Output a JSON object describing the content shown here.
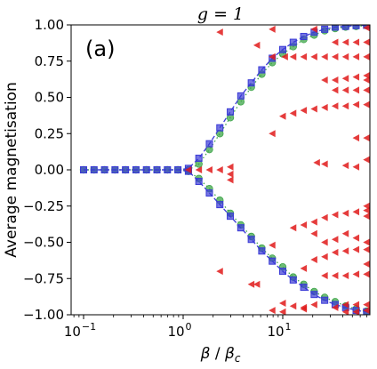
{
  "chart_data": {
    "type": "scatter",
    "title": "g = 1",
    "panel_label": "(a)",
    "xlabel": "β / β_c",
    "ylabel": "Average magnetisation",
    "xscale": "log",
    "xlim": [
      0.075,
      75
    ],
    "ylim": [
      -1.0,
      1.0
    ],
    "x_ticks": [
      {
        "value": 0.1,
        "base": "10",
        "exp": "−1"
      },
      {
        "value": 1,
        "base": "10",
        "exp": "0"
      },
      {
        "value": 10,
        "base": "10",
        "exp": "1"
      }
    ],
    "y_ticks": [
      {
        "value": 1.0,
        "label": "1.00"
      },
      {
        "value": 0.75,
        "label": "0.75"
      },
      {
        "value": 0.5,
        "label": "0.50"
      },
      {
        "value": 0.25,
        "label": "0.25"
      },
      {
        "value": 0.0,
        "label": "0.00"
      },
      {
        "value": -0.25,
        "label": "−0.25"
      },
      {
        "value": -0.5,
        "label": "−0.50"
      },
      {
        "value": -0.75,
        "label": "−0.75"
      },
      {
        "value": -1.0,
        "label": "−1.00"
      }
    ],
    "grid": false,
    "legend": "none",
    "series": [
      {
        "marker": "square",
        "color": "#3a3ad6",
        "line": "dashed",
        "upper": [
          [
            0.1,
            0.0
          ],
          [
            0.1274,
            0.0
          ],
          [
            0.1624,
            0.0
          ],
          [
            0.2069,
            0.0
          ],
          [
            0.2637,
            0.0
          ],
          [
            0.336,
            0.0
          ],
          [
            0.4281,
            0.0
          ],
          [
            0.5456,
            0.0
          ],
          [
            0.6952,
            0.0
          ],
          [
            0.8859,
            0.0
          ],
          [
            1.129,
            0.01
          ],
          [
            1.438,
            0.08
          ],
          [
            1.833,
            0.18
          ],
          [
            2.336,
            0.29
          ],
          [
            2.976,
            0.4
          ],
          [
            3.793,
            0.51
          ],
          [
            4.833,
            0.6
          ],
          [
            6.158,
            0.69
          ],
          [
            7.848,
            0.77
          ],
          [
            10.0,
            0.83
          ],
          [
            12.74,
            0.88
          ],
          [
            16.24,
            0.92
          ],
          [
            20.69,
            0.95
          ],
          [
            26.37,
            0.97
          ],
          [
            33.6,
            0.985
          ],
          [
            42.81,
            0.99
          ],
          [
            54.56,
            0.995
          ],
          [
            69.52,
            0.997
          ]
        ],
        "lower": [
          [
            1.129,
            -0.01
          ],
          [
            1.438,
            -0.08
          ],
          [
            1.833,
            -0.16
          ],
          [
            2.336,
            -0.24
          ],
          [
            2.976,
            -0.32
          ],
          [
            3.793,
            -0.4
          ],
          [
            4.833,
            -0.48
          ],
          [
            6.158,
            -0.56
          ],
          [
            7.848,
            -0.63
          ],
          [
            10.0,
            -0.7
          ],
          [
            12.74,
            -0.76
          ],
          [
            16.24,
            -0.81
          ],
          [
            20.69,
            -0.86
          ],
          [
            26.37,
            -0.9
          ],
          [
            33.6,
            -0.93
          ],
          [
            42.81,
            -0.95
          ],
          [
            54.56,
            -0.97
          ],
          [
            69.52,
            -0.98
          ]
        ]
      },
      {
        "marker": "circle",
        "color": "#3fa64a",
        "line": "dotted",
        "upper": [
          [
            0.1,
            0.0
          ],
          [
            0.1274,
            0.0
          ],
          [
            0.1624,
            0.0
          ],
          [
            0.2069,
            0.0
          ],
          [
            0.2637,
            0.0
          ],
          [
            0.336,
            0.0
          ],
          [
            0.4281,
            0.0
          ],
          [
            0.5456,
            0.0
          ],
          [
            0.6952,
            0.0
          ],
          [
            0.8859,
            0.0
          ],
          [
            1.129,
            0.0
          ],
          [
            1.438,
            0.04
          ],
          [
            1.833,
            0.14
          ],
          [
            2.336,
            0.25
          ],
          [
            2.976,
            0.36
          ],
          [
            3.793,
            0.47
          ],
          [
            4.833,
            0.57
          ],
          [
            6.158,
            0.66
          ],
          [
            7.848,
            0.74
          ],
          [
            10.0,
            0.8
          ],
          [
            12.74,
            0.85
          ],
          [
            16.24,
            0.9
          ],
          [
            20.69,
            0.93
          ],
          [
            26.37,
            0.96
          ],
          [
            33.6,
            0.975
          ],
          [
            42.81,
            0.985
          ],
          [
            54.56,
            0.99
          ],
          [
            69.52,
            0.995
          ]
        ],
        "lower": [
          [
            1.129,
            -0.01
          ],
          [
            1.438,
            -0.06
          ],
          [
            1.833,
            -0.13
          ],
          [
            2.336,
            -0.21
          ],
          [
            2.976,
            -0.3
          ],
          [
            3.793,
            -0.38
          ],
          [
            4.833,
            -0.46
          ],
          [
            6.158,
            -0.54
          ],
          [
            7.848,
            -0.61
          ],
          [
            10.0,
            -0.67
          ],
          [
            12.74,
            -0.74
          ],
          [
            16.24,
            -0.79
          ],
          [
            20.69,
            -0.84
          ],
          [
            26.37,
            -0.88
          ],
          [
            33.6,
            -0.91
          ],
          [
            42.81,
            -0.94
          ],
          [
            54.56,
            -0.96
          ],
          [
            69.52,
            -0.975
          ]
        ]
      },
      {
        "marker": "triangle-left",
        "color": "#e01a1a",
        "line": "none",
        "points": [
          [
            1.129,
            0.0
          ],
          [
            1.438,
            0.0
          ],
          [
            1.833,
            0.0
          ],
          [
            2.336,
            0.0
          ],
          [
            2.976,
            -0.03
          ],
          [
            2.976,
            -0.07
          ],
          [
            2.976,
            0.02
          ],
          [
            2.336,
            -0.7
          ],
          [
            2.336,
            0.95
          ],
          [
            4.833,
            -0.79
          ],
          [
            5.5,
            0.86
          ],
          [
            5.5,
            -0.79
          ],
          [
            7.848,
            0.25
          ],
          [
            7.848,
            -0.52
          ],
          [
            7.848,
            0.78
          ],
          [
            7.848,
            0.97
          ],
          [
            7.848,
            -0.97
          ],
          [
            10.0,
            0.37
          ],
          [
            10.0,
            -0.92
          ],
          [
            10.0,
            -0.98
          ],
          [
            10.5,
            0.78
          ],
          [
            12.74,
            0.39
          ],
          [
            12.74,
            0.78
          ],
          [
            12.74,
            -0.4
          ],
          [
            12.74,
            -0.94
          ],
          [
            16.24,
            0.41
          ],
          [
            16.24,
            0.78
          ],
          [
            16.24,
            -0.38
          ],
          [
            16.24,
            -0.68
          ],
          [
            16.24,
            -0.95
          ],
          [
            20.69,
            0.42
          ],
          [
            20.69,
            0.78
          ],
          [
            20.69,
            -0.36
          ],
          [
            20.69,
            -0.44
          ],
          [
            20.69,
            -0.62
          ],
          [
            20.69,
            -0.93
          ],
          [
            20.69,
            0.97
          ],
          [
            26.37,
            0.43
          ],
          [
            26.37,
            0.78
          ],
          [
            26.37,
            0.04
          ],
          [
            26.37,
            -0.33
          ],
          [
            26.37,
            -0.5
          ],
          [
            26.37,
            -0.6
          ],
          [
            26.37,
            -0.73
          ],
          [
            26.37,
            0.62
          ],
          [
            33.6,
            0.44
          ],
          [
            33.6,
            0.78
          ],
          [
            33.6,
            0.88
          ],
          [
            33.6,
            0.62
          ],
          [
            33.6,
            0.55
          ],
          [
            33.6,
            -0.31
          ],
          [
            33.6,
            -0.48
          ],
          [
            33.6,
            -0.57
          ],
          [
            33.6,
            -0.73
          ],
          [
            33.6,
            -0.95
          ],
          [
            42.81,
            0.44
          ],
          [
            42.81,
            0.78
          ],
          [
            42.81,
            0.88
          ],
          [
            42.81,
            0.63
          ],
          [
            42.81,
            0.55
          ],
          [
            42.81,
            0.03
          ],
          [
            42.81,
            -0.3
          ],
          [
            42.81,
            -0.44
          ],
          [
            42.81,
            -0.56
          ],
          [
            42.81,
            -0.73
          ],
          [
            42.81,
            -0.93
          ],
          [
            42.81,
            -0.98
          ],
          [
            54.56,
            0.45
          ],
          [
            54.56,
            0.78
          ],
          [
            54.56,
            0.88
          ],
          [
            54.56,
            0.64
          ],
          [
            54.56,
            0.55
          ],
          [
            54.56,
            0.22
          ],
          [
            54.56,
            0.02
          ],
          [
            54.56,
            -0.29
          ],
          [
            54.56,
            -0.47
          ],
          [
            54.56,
            -0.55
          ],
          [
            54.56,
            -0.72
          ],
          [
            54.56,
            -0.93
          ],
          [
            54.56,
            -0.98
          ],
          [
            69.52,
            0.45
          ],
          [
            69.52,
            0.78
          ],
          [
            69.52,
            0.88
          ],
          [
            69.52,
            0.65
          ],
          [
            69.52,
            0.62
          ],
          [
            69.52,
            0.55
          ],
          [
            69.52,
            0.22
          ],
          [
            69.52,
            0.07
          ],
          [
            69.52,
            -0.25
          ],
          [
            69.52,
            -0.28
          ],
          [
            69.52,
            -0.32
          ],
          [
            69.52,
            -0.5
          ],
          [
            69.52,
            -0.55
          ],
          [
            69.52,
            -0.65
          ],
          [
            69.52,
            -0.72
          ],
          [
            69.52,
            -0.93
          ],
          [
            69.52,
            -0.97
          ],
          [
            69.52,
            0.98
          ],
          [
            16.24,
            -0.96
          ],
          [
            22.0,
            0.05
          ]
        ]
      }
    ]
  }
}
